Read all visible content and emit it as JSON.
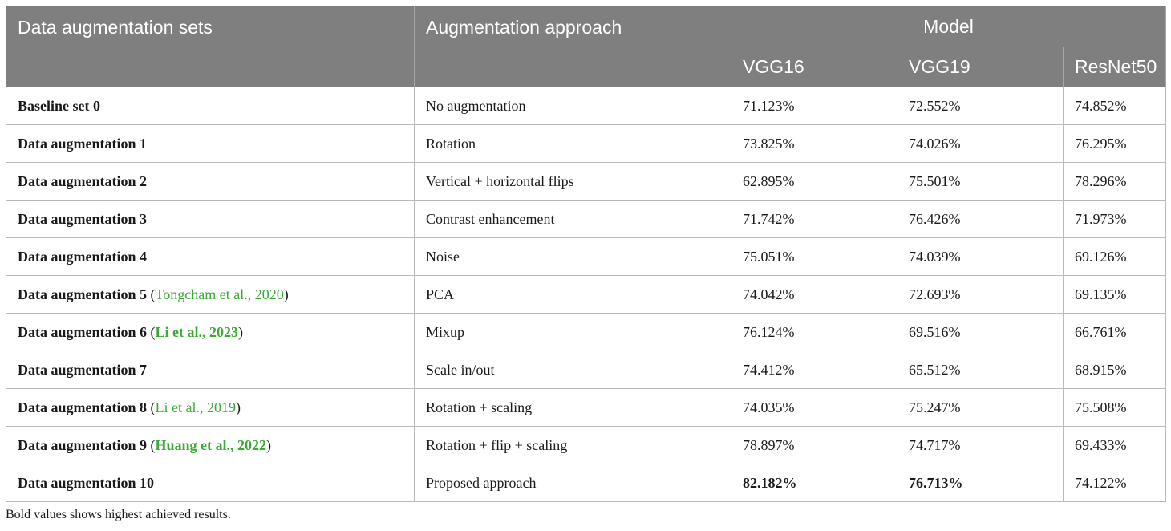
{
  "header": {
    "sets": "Data augmentation sets",
    "approach": "Augmentation approach",
    "model": "Model",
    "models": [
      "VGG16",
      "VGG19",
      "ResNet50"
    ]
  },
  "rows": [
    {
      "set": "Baseline set 0",
      "cite": "",
      "cite_bold": false,
      "approach": "No augmentation",
      "vgg16": "71.123%",
      "vgg19": "72.552%",
      "resnet50": "74.852%"
    },
    {
      "set": "Data augmentation 1",
      "cite": "",
      "cite_bold": false,
      "approach": "Rotation",
      "vgg16": "73.825%",
      "vgg19": "74.026%",
      "resnet50": "76.295%"
    },
    {
      "set": "Data augmentation 2",
      "cite": "",
      "cite_bold": false,
      "approach": "Vertical + horizontal flips",
      "vgg16": "62.895%",
      "vgg19": "75.501%",
      "resnet50": "78.296%"
    },
    {
      "set": "Data augmentation 3",
      "cite": "",
      "cite_bold": false,
      "approach": "Contrast enhancement",
      "vgg16": "71.742%",
      "vgg19": "76.426%",
      "resnet50": "71.973%"
    },
    {
      "set": "Data augmentation 4",
      "cite": "",
      "cite_bold": false,
      "approach": "Noise",
      "vgg16": "75.051%",
      "vgg19": "74.039%",
      "resnet50": "69.126%"
    },
    {
      "set": "Data augmentation 5",
      "cite": "Tongcham et al., 2020",
      "cite_bold": false,
      "approach": "PCA",
      "vgg16": "74.042%",
      "vgg19": "72.693%",
      "resnet50": "69.135%"
    },
    {
      "set": "Data augmentation 6",
      "cite": "Li et al., 2023",
      "cite_bold": true,
      "approach": "Mixup",
      "vgg16": "76.124%",
      "vgg19": "69.516%",
      "resnet50": "66.761%"
    },
    {
      "set": "Data augmentation 7",
      "cite": "",
      "cite_bold": false,
      "approach": "Scale in/out",
      "vgg16": "74.412%",
      "vgg19": "65.512%",
      "resnet50": "68.915%"
    },
    {
      "set": "Data augmentation 8",
      "cite": "Li et al., 2019",
      "cite_bold": false,
      "approach": "Rotation + scaling",
      "vgg16": "74.035%",
      "vgg19": "75.247%",
      "resnet50": "75.508%"
    },
    {
      "set": "Data augmentation 9",
      "cite": "Huang et al., 2022",
      "cite_bold": true,
      "approach": "Rotation + flip + scaling",
      "vgg16": "78.897%",
      "vgg19": "74.717%",
      "resnet50": "69.433%"
    },
    {
      "set": "Data augmentation 10",
      "cite": "",
      "cite_bold": false,
      "approach": "Proposed approach",
      "vgg16": "82.182%",
      "vgg19": "76.713%",
      "resnet50": "74.122%",
      "bold_values": [
        "vgg16",
        "vgg19"
      ]
    }
  ],
  "footnote": "Bold values shows highest achieved results.",
  "colors": {
    "header_bg": "#7f7f7f",
    "citation": "#3aaa35",
    "border": "#b9b9b9"
  }
}
